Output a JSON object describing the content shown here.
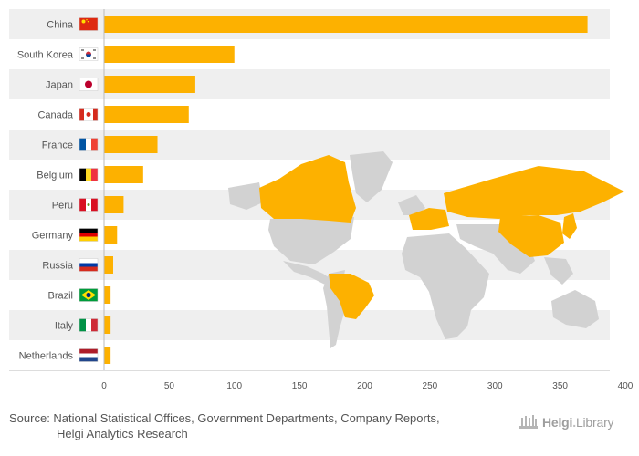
{
  "chart_data": {
    "type": "bar",
    "orientation": "horizontal",
    "categories": [
      "China",
      "South Korea",
      "Japan",
      "Canada",
      "France",
      "Belgium",
      "Peru",
      "Germany",
      "Russia",
      "Brazil",
      "Italy",
      "Netherlands"
    ],
    "values": [
      371,
      100,
      70,
      65,
      41,
      30,
      15,
      10,
      7,
      5,
      5,
      5
    ],
    "xlim": [
      0,
      400
    ],
    "xticks": [
      "0",
      "50",
      "100",
      "150",
      "200",
      "250",
      "300",
      "350",
      "400"
    ],
    "bar_color": "#fdb100",
    "row_band_color": "#efefef",
    "map_color": "#d2d2d2",
    "highlight_color": "#fdb100",
    "highlighted_countries": [
      "China",
      "South Korea",
      "Japan",
      "Canada",
      "France",
      "Belgium",
      "Peru",
      "Germany",
      "Russia",
      "Brazil",
      "Italy",
      "Netherlands"
    ],
    "flags": [
      "flag-china",
      "flag-south-korea",
      "flag-japan",
      "flag-canada",
      "flag-france",
      "flag-belgium",
      "flag-peru",
      "flag-germany",
      "flag-russia",
      "flag-brazil",
      "flag-italy",
      "flag-netherlands"
    ]
  },
  "footer": {
    "source_line1": "Source: National Statistical Offices, Government Departments, Company Reports,",
    "source_line2": "Helgi Analytics Research"
  },
  "logo": {
    "brand_a": "Helgi",
    "brand_b": "Library"
  }
}
